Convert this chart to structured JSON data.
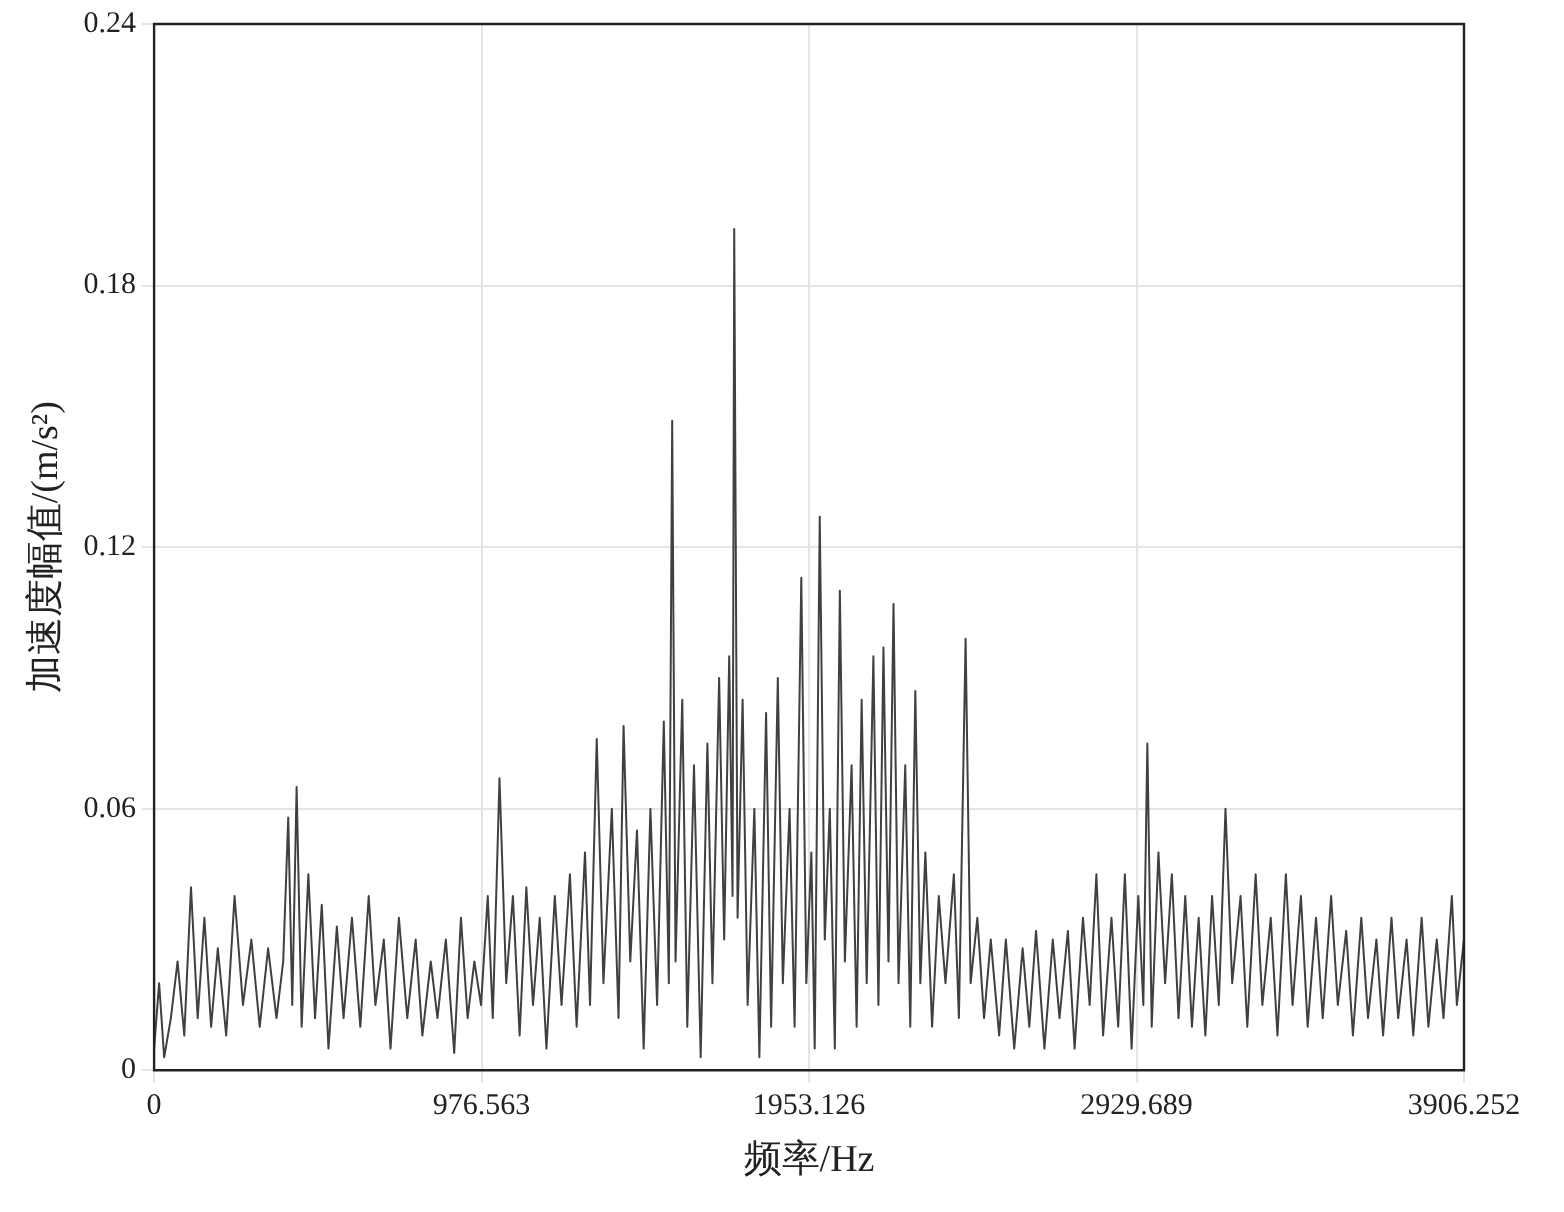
{
  "chart_data": {
    "type": "line",
    "xlabel": "频率/Hz",
    "ylabel": "加速度幅值/(m/s²)",
    "color": "#404040",
    "x": [
      0,
      15,
      30,
      50,
      70,
      90,
      110,
      130,
      150,
      170,
      190,
      215,
      240,
      265,
      290,
      315,
      340,
      365,
      385,
      400,
      412,
      425,
      440,
      460,
      480,
      500,
      520,
      545,
      565,
      590,
      615,
      640,
      660,
      685,
      705,
      730,
      755,
      780,
      800,
      825,
      845,
      870,
      895,
      915,
      935,
      955,
      975,
      995,
      1010,
      1030,
      1050,
      1070,
      1090,
      1110,
      1130,
      1150,
      1170,
      1195,
      1215,
      1240,
      1260,
      1285,
      1300,
      1320,
      1340,
      1365,
      1385,
      1400,
      1420,
      1440,
      1460,
      1480,
      1500,
      1520,
      1535,
      1545,
      1555,
      1575,
      1590,
      1610,
      1630,
      1650,
      1665,
      1685,
      1700,
      1715,
      1725,
      1730,
      1740,
      1755,
      1770,
      1790,
      1805,
      1825,
      1840,
      1860,
      1875,
      1895,
      1910,
      1930,
      1945,
      1960,
      1970,
      1985,
      2000,
      2015,
      2030,
      2045,
      2060,
      2080,
      2095,
      2110,
      2125,
      2145,
      2160,
      2175,
      2190,
      2205,
      2220,
      2240,
      2255,
      2270,
      2285,
      2300,
      2320,
      2340,
      2360,
      2385,
      2400,
      2420,
      2435,
      2455,
      2475,
      2495,
      2520,
      2540,
      2565,
      2590,
      2610,
      2630,
      2655,
      2680,
      2700,
      2725,
      2745,
      2770,
      2790,
      2810,
      2830,
      2855,
      2875,
      2895,
      2915,
      2935,
      2950,
      2962,
      2975,
      2995,
      3015,
      3035,
      3055,
      3075,
      3095,
      3115,
      3135,
      3155,
      3175,
      3195,
      3215,
      3240,
      3260,
      3285,
      3305,
      3330,
      3350,
      3375,
      3395,
      3420,
      3440,
      3465,
      3485,
      3510,
      3530,
      3555,
      3575,
      3600,
      3620,
      3645,
      3665,
      3690,
      3710,
      3735,
      3755,
      3780,
      3800,
      3825,
      3845,
      3870,
      3885,
      3906
    ],
    "values": [
      0.005,
      0.02,
      0.003,
      0.012,
      0.025,
      0.008,
      0.042,
      0.012,
      0.035,
      0.01,
      0.028,
      0.008,
      0.04,
      0.015,
      0.03,
      0.01,
      0.028,
      0.012,
      0.025,
      0.058,
      0.015,
      0.065,
      0.01,
      0.045,
      0.012,
      0.038,
      0.005,
      0.033,
      0.012,
      0.035,
      0.01,
      0.04,
      0.015,
      0.03,
      0.005,
      0.035,
      0.012,
      0.03,
      0.008,
      0.025,
      0.012,
      0.03,
      0.004,
      0.035,
      0.012,
      0.025,
      0.015,
      0.04,
      0.012,
      0.067,
      0.02,
      0.04,
      0.008,
      0.042,
      0.015,
      0.035,
      0.005,
      0.04,
      0.015,
      0.045,
      0.01,
      0.05,
      0.015,
      0.076,
      0.02,
      0.06,
      0.012,
      0.079,
      0.025,
      0.055,
      0.005,
      0.06,
      0.015,
      0.08,
      0.02,
      0.149,
      0.025,
      0.085,
      0.01,
      0.07,
      0.003,
      0.075,
      0.02,
      0.09,
      0.03,
      0.095,
      0.04,
      0.193,
      0.035,
      0.085,
      0.015,
      0.06,
      0.003,
      0.082,
      0.01,
      0.09,
      0.02,
      0.06,
      0.01,
      0.113,
      0.02,
      0.05,
      0.005,
      0.127,
      0.03,
      0.06,
      0.005,
      0.11,
      0.025,
      0.07,
      0.01,
      0.085,
      0.02,
      0.095,
      0.015,
      0.097,
      0.025,
      0.107,
      0.02,
      0.07,
      0.01,
      0.087,
      0.02,
      0.05,
      0.01,
      0.04,
      0.02,
      0.045,
      0.012,
      0.099,
      0.02,
      0.035,
      0.012,
      0.03,
      0.008,
      0.03,
      0.005,
      0.028,
      0.01,
      0.032,
      0.005,
      0.03,
      0.012,
      0.032,
      0.005,
      0.035,
      0.015,
      0.045,
      0.008,
      0.035,
      0.01,
      0.045,
      0.005,
      0.04,
      0.015,
      0.075,
      0.01,
      0.05,
      0.02,
      0.045,
      0.012,
      0.04,
      0.01,
      0.035,
      0.008,
      0.04,
      0.015,
      0.06,
      0.02,
      0.04,
      0.01,
      0.045,
      0.015,
      0.035,
      0.008,
      0.045,
      0.015,
      0.04,
      0.01,
      0.035,
      0.012,
      0.04,
      0.015,
      0.032,
      0.008,
      0.035,
      0.012,
      0.03,
      0.008,
      0.035,
      0.012,
      0.03,
      0.008,
      0.035,
      0.01,
      0.03,
      0.012,
      0.04,
      0.015,
      0.03
    ],
    "xlim": [
      0,
      3906.252
    ],
    "xticks": [
      0,
      976.563,
      1953.126,
      2929.689,
      3906.252
    ],
    "ylim": [
      0,
      0.24
    ],
    "yticks": [
      0,
      0.06,
      0.12,
      0.18,
      0.24
    ],
    "grid": true,
    "legend": false,
    "marker": "none",
    "line_style": "solid"
  }
}
